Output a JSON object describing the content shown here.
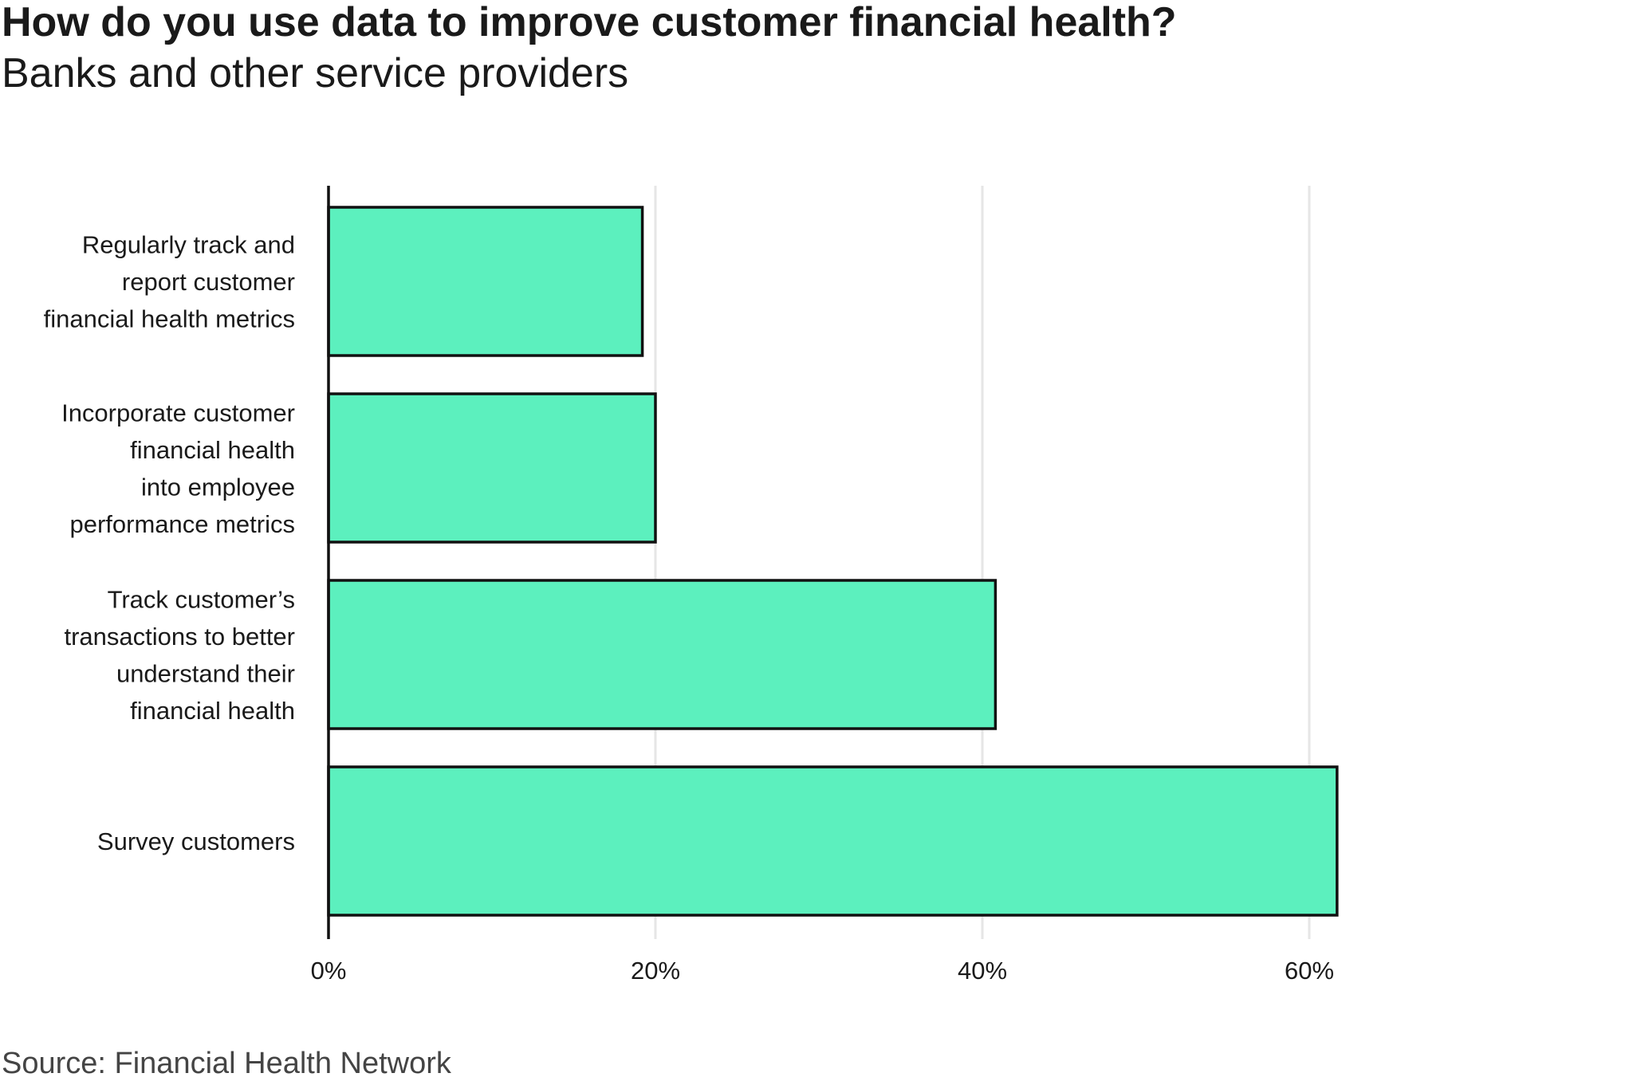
{
  "header": {
    "title": "How do you use data to improve customer financial health?",
    "subtitle": "Banks and other service providers"
  },
  "footer": {
    "source": "Source: Financial Health Network"
  },
  "colors": {
    "bar_fill": "#5CF0BE",
    "bar_stroke": "#111111",
    "grid": "#e6e6e6",
    "axis": "#111111"
  },
  "chart_data": {
    "type": "bar",
    "orientation": "horizontal",
    "title": "How do you use data to improve customer financial health?",
    "subtitle": "Banks and other service providers",
    "categories": [
      [
        "Regularly track and",
        "report customer",
        "financial health metrics"
      ],
      [
        "Incorporate customer",
        "financial health",
        "into employee",
        "performance metrics"
      ],
      [
        "Track customer’s",
        "transactions to better",
        "understand their",
        "financial health"
      ],
      [
        "Survey customers"
      ]
    ],
    "values": [
      19.2,
      20,
      40.8,
      61.7
    ],
    "xlim": [
      0,
      70
    ],
    "ticks": [
      0,
      20,
      40,
      60
    ],
    "tick_labels": [
      "0%",
      "20%",
      "40%",
      "60%"
    ],
    "xlabel": "",
    "ylabel": "",
    "grid": true,
    "legend": "none"
  }
}
